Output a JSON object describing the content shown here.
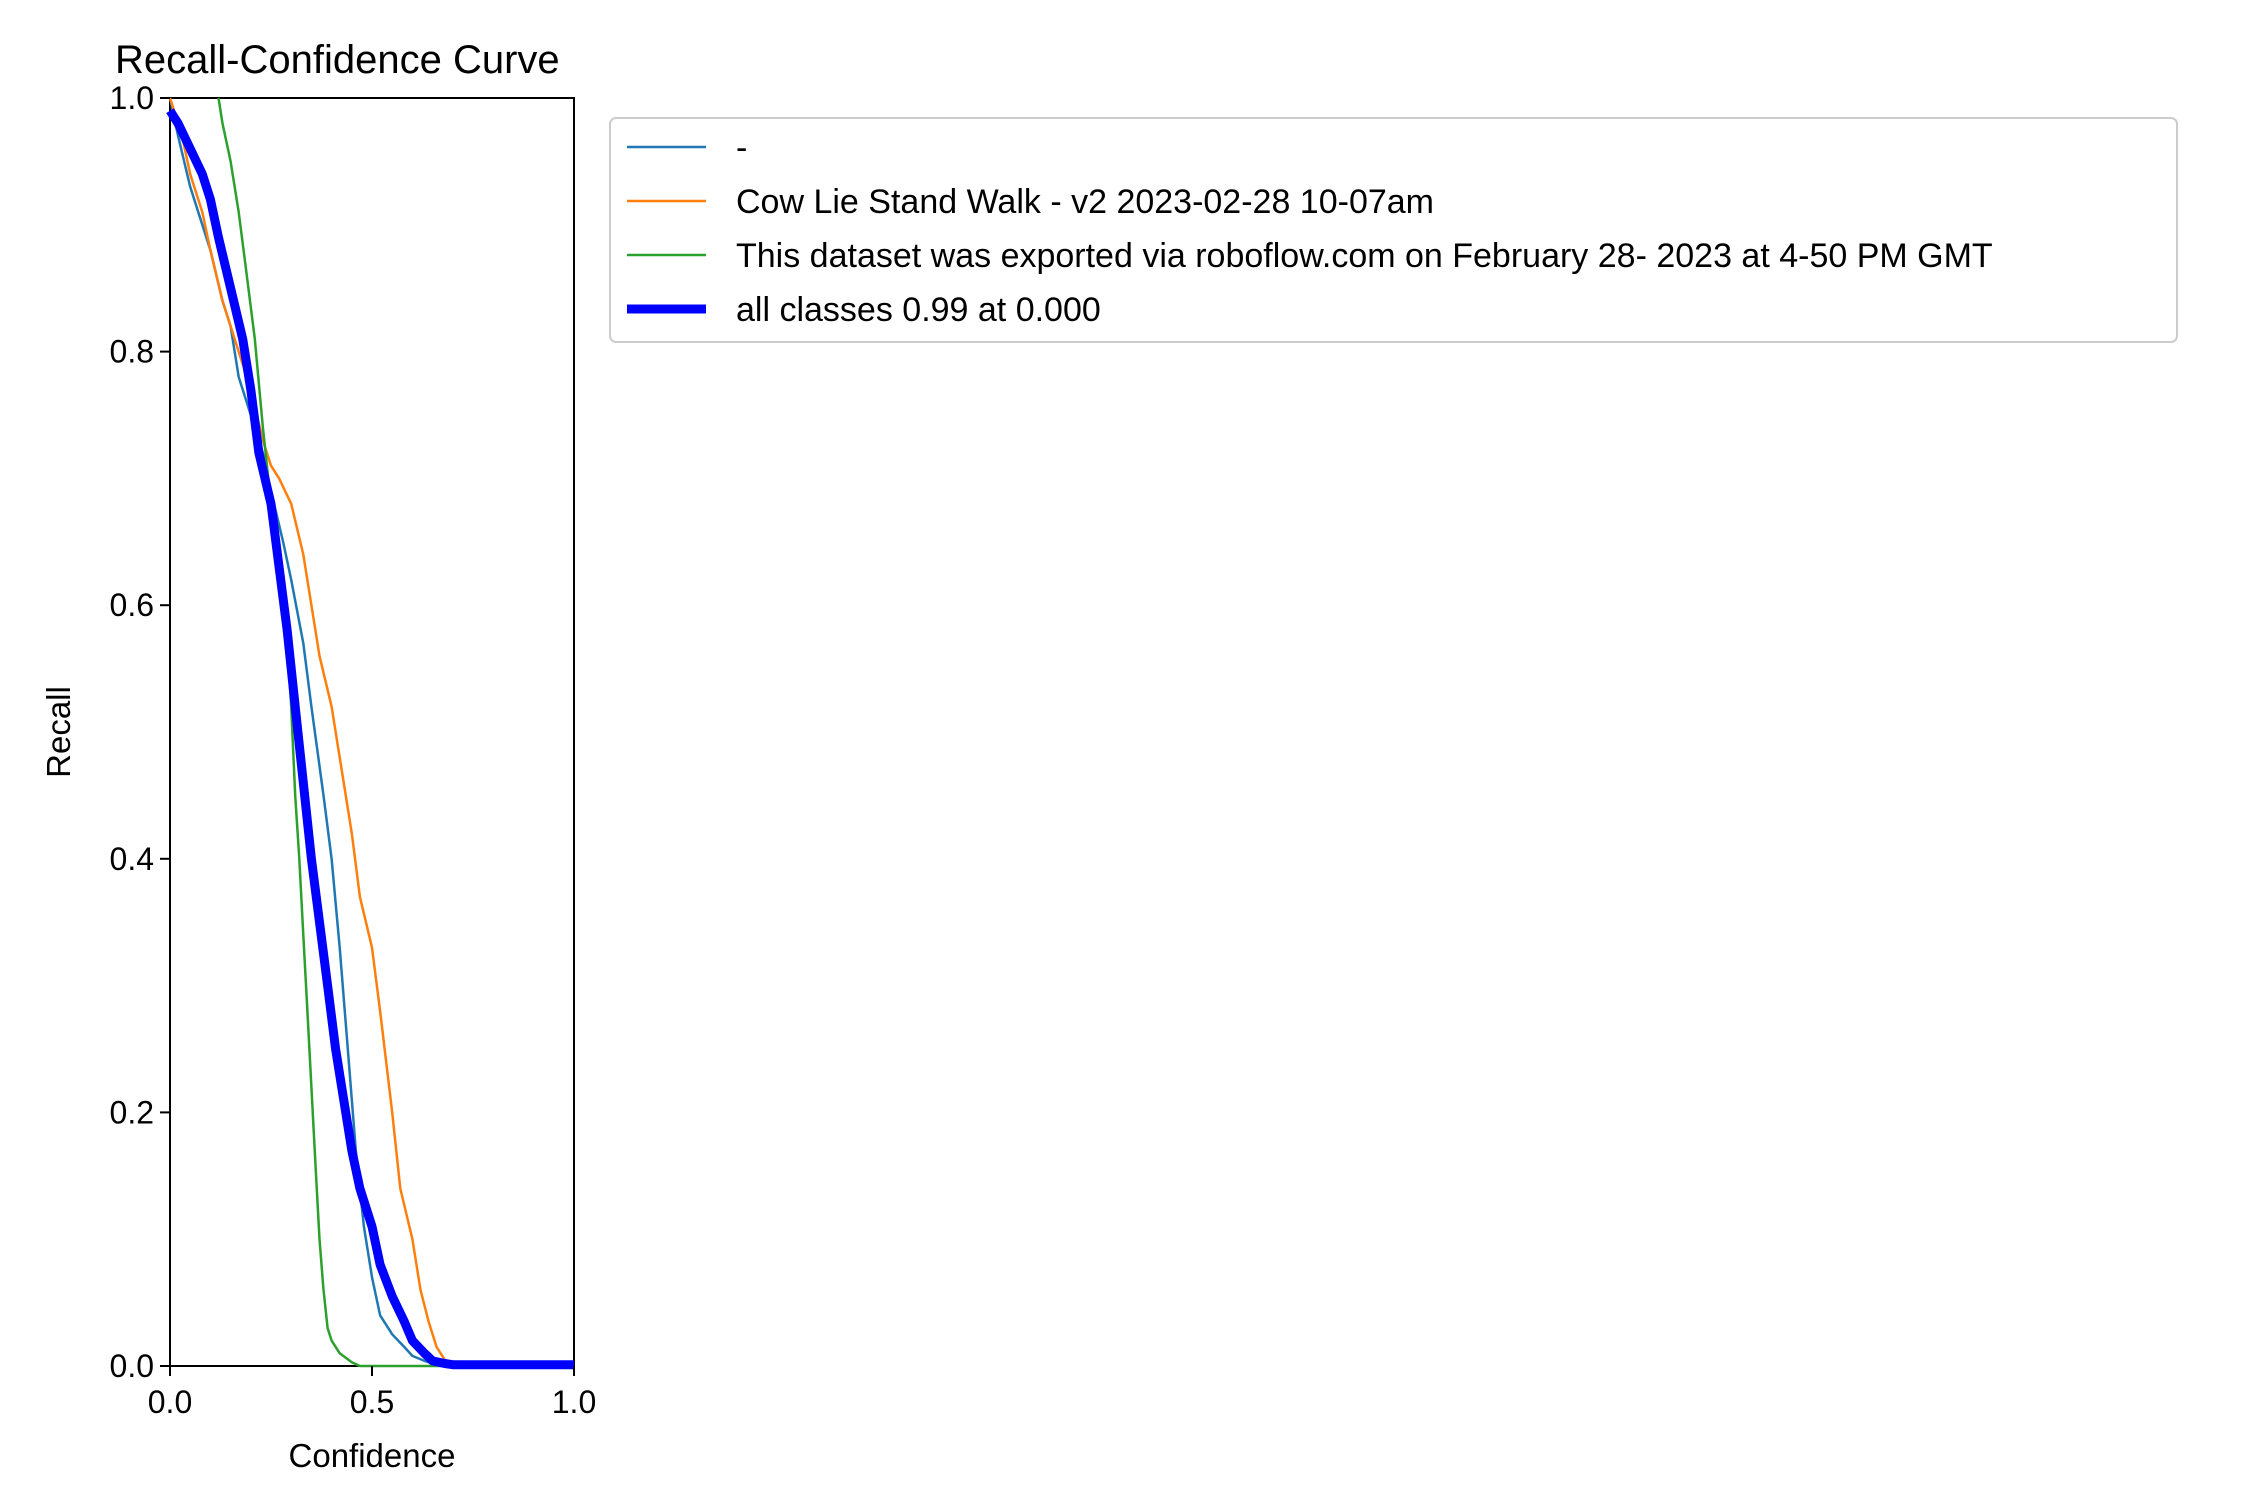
{
  "chart_data": {
    "type": "line",
    "title": "Recall-Confidence Curve",
    "xlabel": "Confidence",
    "ylabel": "Recall",
    "xlim": [
      0,
      1
    ],
    "ylim": [
      0,
      1
    ],
    "xticks": [
      0.0,
      0.5,
      1.0
    ],
    "xtick_labels": [
      "0.0",
      "0.5",
      "1.0"
    ],
    "yticks": [
      0.0,
      0.2,
      0.4,
      0.6,
      0.8,
      1.0
    ],
    "ytick_labels": [
      "0.0",
      "0.2",
      "0.4",
      "0.6",
      "0.8",
      "1.0"
    ],
    "grid": false,
    "legend_position": "outside-right-top",
    "series": [
      {
        "name": "-",
        "color": "#1f77b4",
        "width": "thin",
        "x": [
          0.0,
          0.02,
          0.05,
          0.08,
          0.1,
          0.13,
          0.15,
          0.17,
          0.2,
          0.23,
          0.25,
          0.28,
          0.3,
          0.33,
          0.35,
          0.38,
          0.4,
          0.42,
          0.44,
          0.46,
          0.48,
          0.5,
          0.52,
          0.55,
          0.58,
          0.6,
          0.63,
          0.65,
          0.7,
          1.0
        ],
        "y": [
          1.0,
          0.97,
          0.93,
          0.9,
          0.88,
          0.84,
          0.82,
          0.78,
          0.75,
          0.72,
          0.69,
          0.65,
          0.62,
          0.57,
          0.52,
          0.45,
          0.4,
          0.33,
          0.25,
          0.17,
          0.11,
          0.07,
          0.04,
          0.025,
          0.015,
          0.008,
          0.004,
          0.002,
          0.0,
          0.0
        ]
      },
      {
        "name": "Cow Lie Stand Walk - v2 2023-02-28 10-07am",
        "color": "#ff7f0e",
        "width": "thin",
        "x": [
          0.0,
          0.03,
          0.05,
          0.08,
          0.1,
          0.13,
          0.15,
          0.18,
          0.2,
          0.23,
          0.25,
          0.27,
          0.3,
          0.33,
          0.35,
          0.37,
          0.4,
          0.42,
          0.45,
          0.47,
          0.5,
          0.52,
          0.55,
          0.57,
          0.6,
          0.62,
          0.64,
          0.66,
          0.68,
          0.7,
          1.0
        ],
        "y": [
          1.0,
          0.97,
          0.94,
          0.91,
          0.88,
          0.84,
          0.82,
          0.79,
          0.77,
          0.73,
          0.71,
          0.7,
          0.68,
          0.64,
          0.6,
          0.56,
          0.52,
          0.48,
          0.42,
          0.37,
          0.33,
          0.28,
          0.2,
          0.14,
          0.1,
          0.06,
          0.035,
          0.015,
          0.005,
          0.002,
          0.002
        ]
      },
      {
        "name": "This dataset was exported via roboflow.com on February 28- 2023 at 4-50 PM GMT",
        "color": "#2ca02c",
        "width": "thin",
        "x": [
          0.12,
          0.13,
          0.15,
          0.17,
          0.19,
          0.21,
          0.23,
          0.25,
          0.27,
          0.28,
          0.29,
          0.3,
          0.31,
          0.32,
          0.33,
          0.34,
          0.35,
          0.36,
          0.37,
          0.38,
          0.39,
          0.4,
          0.42,
          0.45,
          0.47,
          0.5,
          1.0
        ],
        "y": [
          1.0,
          0.98,
          0.95,
          0.91,
          0.86,
          0.81,
          0.74,
          0.68,
          0.63,
          0.6,
          0.57,
          0.52,
          0.45,
          0.4,
          0.34,
          0.28,
          0.22,
          0.16,
          0.1,
          0.06,
          0.03,
          0.02,
          0.01,
          0.003,
          0.0,
          0.0,
          0.0
        ]
      },
      {
        "name": "all classes 0.99 at 0.000",
        "color": "#0000ff",
        "width": "thick",
        "x": [
          0.0,
          0.02,
          0.05,
          0.08,
          0.1,
          0.12,
          0.15,
          0.18,
          0.2,
          0.22,
          0.25,
          0.27,
          0.29,
          0.31,
          0.33,
          0.35,
          0.37,
          0.39,
          0.41,
          0.43,
          0.45,
          0.47,
          0.5,
          0.52,
          0.55,
          0.58,
          0.6,
          0.63,
          0.65,
          0.68,
          0.7,
          1.0
        ],
        "y": [
          0.99,
          0.98,
          0.96,
          0.94,
          0.92,
          0.89,
          0.85,
          0.81,
          0.77,
          0.72,
          0.68,
          0.63,
          0.58,
          0.52,
          0.46,
          0.4,
          0.35,
          0.3,
          0.25,
          0.21,
          0.17,
          0.14,
          0.11,
          0.08,
          0.055,
          0.035,
          0.02,
          0.01,
          0.004,
          0.002,
          0.001,
          0.001
        ]
      }
    ]
  }
}
